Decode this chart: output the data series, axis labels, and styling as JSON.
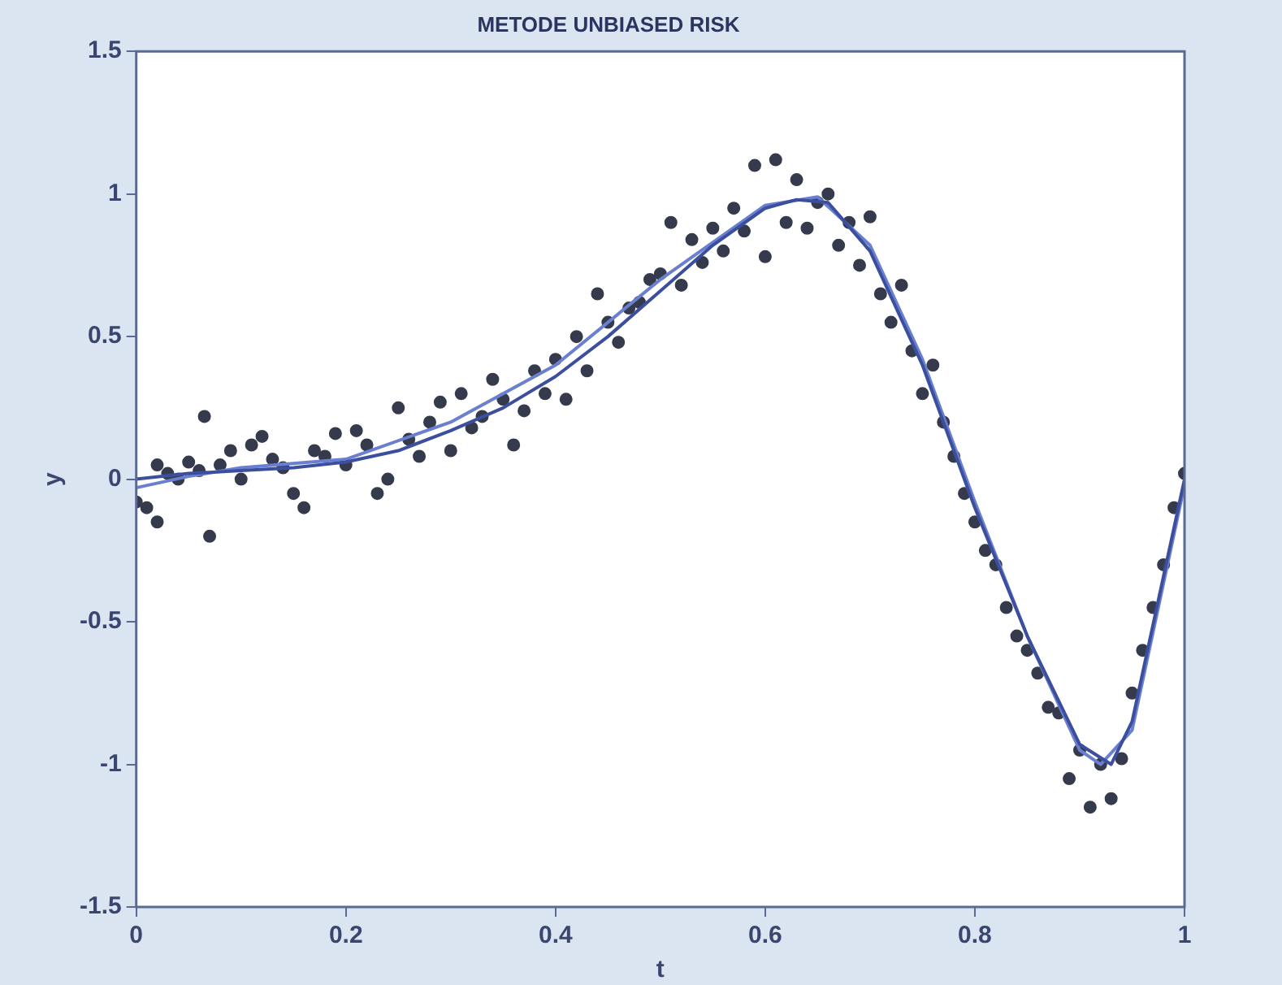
{
  "chart_data": {
    "type": "scatter",
    "title": "METODE UNBIASED RISK",
    "xlabel": "t",
    "ylabel": "y",
    "xlim": [
      0,
      1
    ],
    "xticks": [
      0,
      0.2,
      0.4,
      0.6,
      0.8,
      1
    ],
    "ylim": [
      -1.5,
      1.5
    ],
    "yticks": [
      -1.5,
      -1,
      -0.5,
      0,
      0.5,
      1,
      1.5
    ],
    "grid": false,
    "legend": false,
    "marker": "circle",
    "series": [
      {
        "color": "#353b4c",
        "x": [
          0,
          0.01,
          0.02,
          0.02,
          0.03,
          0.04,
          0.05,
          0.06,
          0.065,
          0.07,
          0.08,
          0.09,
          0.1,
          0.11,
          0.12,
          0.13,
          0.14,
          0.15,
          0.16,
          0.17,
          0.18,
          0.19,
          0.2,
          0.21,
          0.22,
          0.23,
          0.24,
          0.25,
          0.26,
          0.27,
          0.28,
          0.29,
          0.3,
          0.31,
          0.32,
          0.33,
          0.34,
          0.35,
          0.36,
          0.37,
          0.38,
          0.39,
          0.4,
          0.41,
          0.42,
          0.43,
          0.44,
          0.45,
          0.46,
          0.47,
          0.48,
          0.49,
          0.5,
          0.51,
          0.52,
          0.53,
          0.54,
          0.55,
          0.56,
          0.57,
          0.58,
          0.59,
          0.6,
          0.61,
          0.62,
          0.63,
          0.64,
          0.65,
          0.66,
          0.67,
          0.68,
          0.69,
          0.7,
          0.71,
          0.72,
          0.73,
          0.74,
          0.75,
          0.76,
          0.77,
          0.78,
          0.79,
          0.8,
          0.81,
          0.82,
          0.83,
          0.84,
          0.85,
          0.86,
          0.87,
          0.88,
          0.89,
          0.9,
          0.91,
          0.92,
          0.93,
          0.94,
          0.95,
          0.96,
          0.97,
          0.98,
          0.99,
          1
        ],
        "values": [
          -0.08,
          -0.1,
          -0.15,
          0.05,
          0.02,
          0,
          0.06,
          0.03,
          0.22,
          -0.2,
          0.05,
          0.1,
          0,
          0.12,
          0.15,
          0.07,
          0.04,
          -0.05,
          -0.1,
          0.1,
          0.08,
          0.16,
          0.05,
          0.17,
          0.12,
          -0.05,
          0,
          0.25,
          0.14,
          0.08,
          0.2,
          0.27,
          0.1,
          0.3,
          0.18,
          0.22,
          0.35,
          0.28,
          0.12,
          0.24,
          0.38,
          0.3,
          0.42,
          0.28,
          0.5,
          0.38,
          0.65,
          0.55,
          0.48,
          0.6,
          0.62,
          0.7,
          0.72,
          0.9,
          0.68,
          0.84,
          0.76,
          0.88,
          0.8,
          0.95,
          0.87,
          1.1,
          0.78,
          1.12,
          0.9,
          1.05,
          0.88,
          0.97,
          1,
          0.82,
          0.9,
          0.75,
          0.92,
          0.65,
          0.55,
          0.68,
          0.45,
          0.3,
          0.4,
          0.2,
          0.08,
          -0.05,
          -0.15,
          -0.25,
          -0.3,
          -0.45,
          -0.55,
          -0.6,
          -0.68,
          -0.8,
          -0.82,
          -1.05,
          -0.95,
          -1.15,
          -1,
          -1.12,
          -0.98,
          -0.75,
          -0.6,
          -0.45,
          -0.3,
          -0.1,
          0.02
        ]
      },
      {
        "type": "line",
        "color": "#3b4f9e",
        "marker": "none",
        "line_style": "solid",
        "x": [
          0,
          0.05,
          0.1,
          0.15,
          0.2,
          0.25,
          0.3,
          0.35,
          0.4,
          0.45,
          0.5,
          0.55,
          0.6,
          0.63,
          0.66,
          0.7,
          0.75,
          0.8,
          0.85,
          0.9,
          0.93,
          0.95,
          1
        ],
        "values": [
          0,
          0.02,
          0.03,
          0.04,
          0.06,
          0.1,
          0.17,
          0.25,
          0.36,
          0.5,
          0.66,
          0.82,
          0.95,
          0.98,
          0.97,
          0.8,
          0.4,
          -0.1,
          -0.55,
          -0.93,
          -1,
          -0.85,
          0
        ]
      },
      {
        "type": "line",
        "color": "#6a7fd0",
        "marker": "none",
        "line_style": "solid",
        "x": [
          0,
          0.05,
          0.1,
          0.2,
          0.3,
          0.4,
          0.5,
          0.6,
          0.65,
          0.7,
          0.75,
          0.8,
          0.85,
          0.9,
          0.92,
          0.95,
          1
        ],
        "values": [
          -0.03,
          0.01,
          0.04,
          0.07,
          0.2,
          0.4,
          0.7,
          0.96,
          0.99,
          0.82,
          0.42,
          -0.08,
          -0.55,
          -0.95,
          -1,
          -0.88,
          -0.02
        ]
      }
    ]
  }
}
